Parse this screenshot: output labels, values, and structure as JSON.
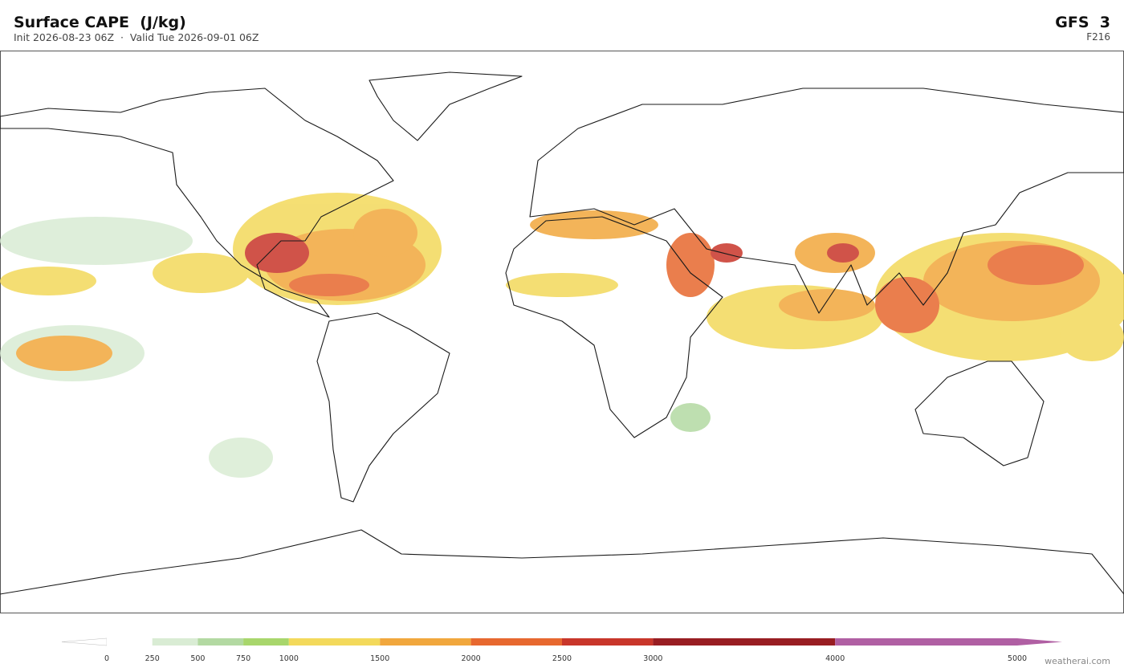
{
  "header": {
    "title": "Surface CAPE  (J/kg)",
    "subtitle": "Init 2026-08-23 06Z  ·  Valid Tue 2026-09-01 06Z",
    "model": "GFS  3",
    "forecast_hour": "F216"
  },
  "colorbar": {
    "ticks": [
      0,
      250,
      500,
      750,
      1000,
      1500,
      2000,
      2500,
      3000,
      4000,
      5000
    ],
    "colors": [
      "#ffffff",
      "#d9ecd4",
      "#b3d9a2",
      "#a8d66c",
      "#f3d95b",
      "#f1a73d",
      "#e7682f",
      "#c8362a",
      "#981d22",
      "#b05fa3"
    ]
  },
  "credit": "weatherai.com"
}
